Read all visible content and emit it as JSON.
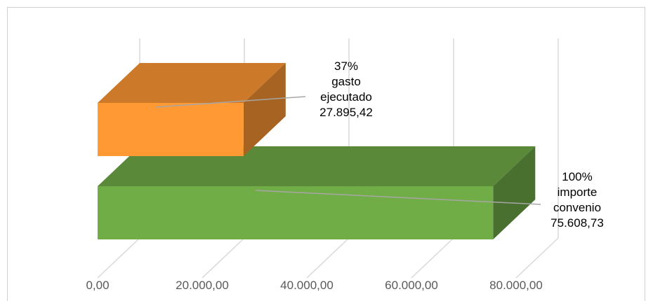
{
  "chart_data": {
    "type": "bar",
    "orientation": "horizontal",
    "three_d": true,
    "grid": true,
    "xlim": [
      0,
      80000
    ],
    "tick_labels": [
      "0,00",
      "20.000,00",
      "40.000,00",
      "60.000,00",
      "80.000,00"
    ],
    "bars": [
      {
        "value": 75608.73,
        "color": "#70ad47",
        "label_lines": [
          "100%",
          "importe",
          "convenio",
          "75.608,73"
        ]
      },
      {
        "value": 27895.42,
        "color": "#ff9933",
        "label_lines": [
          "37%",
          "gasto",
          "ejecutado",
          "27.895,42"
        ]
      }
    ]
  }
}
